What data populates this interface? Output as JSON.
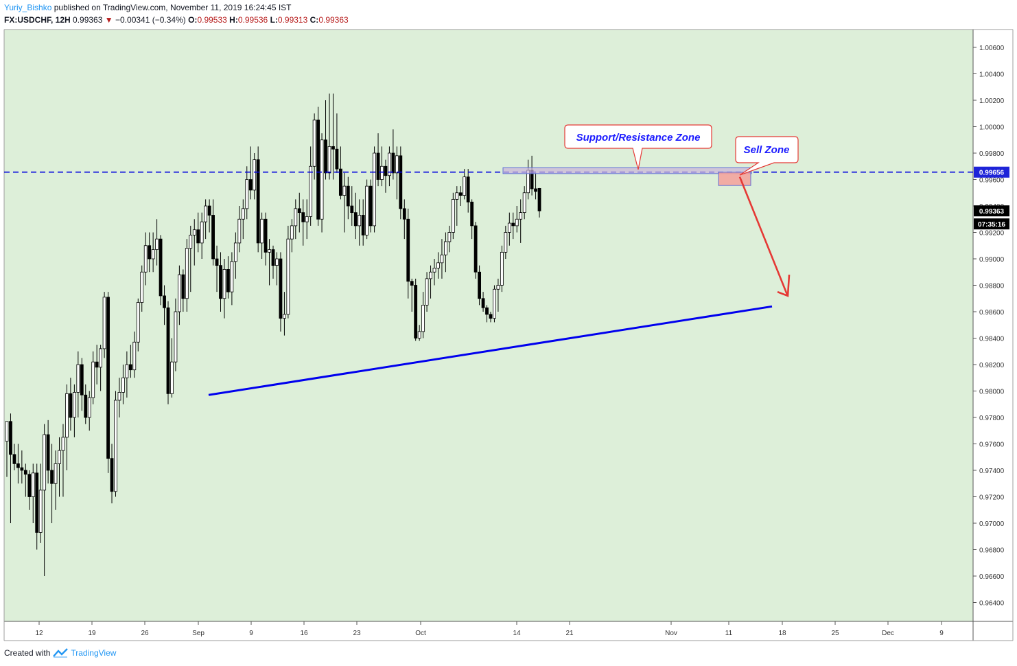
{
  "header": {
    "author": "Yuriy_Bishko",
    "published_text": "published on TradingView.com, November 11, 2019 16:24:45 IST",
    "symbol": "FX:USDCHF, 12H",
    "last": "0.99363",
    "change": "−0.00341 (−0.34%)",
    "o_label": "O:",
    "o": "0.99533",
    "h_label": "H:",
    "h": "0.99536",
    "l_label": "L:",
    "l": "0.99313",
    "c_label": "C:",
    "c": "0.99363"
  },
  "footer": {
    "created_with": "Created with",
    "brand": "TradingView"
  },
  "colors": {
    "background": "#ffffff",
    "plot_bg": "#ddefd9",
    "candle_up_fill": "#ffffff",
    "candle_down_fill": "#000000",
    "trendline": "#0000ee",
    "dashed_line": "#0000dd",
    "arrow": "#e53935",
    "callout_text": "#1a1aff",
    "callout_border": "#e53935",
    "sell_zone_fill": "#f4a09a",
    "sr_zone_fill": "#c9b3d8"
  },
  "chart_data": {
    "type": "candlestick",
    "symbol": "FX:USDCHF",
    "timeframe": "12H",
    "y_axis": {
      "min": 0.962,
      "max": 1.007,
      "ticks": [
        "1.00600",
        "1.00400",
        "1.00200",
        "1.00000",
        "0.99800",
        "0.99600",
        "0.99400",
        "0.99200",
        "0.99000",
        "0.98800",
        "0.98600",
        "0.98400",
        "0.98200",
        "0.98000",
        "0.97800",
        "0.97600",
        "0.97400",
        "0.97200",
        "0.97000",
        "0.96800",
        "0.96600",
        "0.96400"
      ],
      "price_tags": [
        {
          "value": 0.99656,
          "label": "0.99656",
          "style": "blue"
        },
        {
          "value": 0.99363,
          "label": "0.99363",
          "style": "black"
        },
        {
          "value": 0.9922,
          "label": "07:35:16",
          "style": "black"
        }
      ]
    },
    "x_axis": {
      "ticks": [
        "12",
        "19",
        "26",
        "Sep",
        "9",
        "16",
        "23",
        "Oct",
        "14",
        "21",
        "Nov",
        "11",
        "18",
        "25",
        "Dec",
        "9"
      ]
    },
    "candles": [
      [
        0.9762,
        0.9777,
        0.9735,
        0.9777
      ],
      [
        0.9777,
        0.9783,
        0.97,
        0.9752
      ],
      [
        0.9752,
        0.976,
        0.974,
        0.9745
      ],
      [
        0.9745,
        0.976,
        0.973,
        0.9742
      ],
      [
        0.9742,
        0.9755,
        0.973,
        0.974
      ],
      [
        0.974,
        0.9745,
        0.972,
        0.9737
      ],
      [
        0.9737,
        0.974,
        0.971,
        0.972
      ],
      [
        0.972,
        0.9745,
        0.97,
        0.9738
      ],
      [
        0.9738,
        0.9745,
        0.968,
        0.9693
      ],
      [
        0.9693,
        0.9745,
        0.9685,
        0.9725
      ],
      [
        0.9725,
        0.9775,
        0.966,
        0.9767
      ],
      [
        0.9767,
        0.9778,
        0.973,
        0.974
      ],
      [
        0.974,
        0.976,
        0.97,
        0.973
      ],
      [
        0.973,
        0.9755,
        0.971,
        0.9745
      ],
      [
        0.9745,
        0.9765,
        0.972,
        0.9755
      ],
      [
        0.9755,
        0.9775,
        0.972,
        0.9765
      ],
      [
        0.9765,
        0.9805,
        0.974,
        0.9798
      ],
      [
        0.9798,
        0.981,
        0.977,
        0.978
      ],
      [
        0.978,
        0.9805,
        0.9765,
        0.9799
      ],
      [
        0.9799,
        0.983,
        0.978,
        0.982
      ],
      [
        0.982,
        0.9825,
        0.9785,
        0.9797
      ],
      [
        0.9797,
        0.9805,
        0.9775,
        0.978
      ],
      [
        0.978,
        0.98,
        0.977,
        0.9795
      ],
      [
        0.9795,
        0.983,
        0.979,
        0.9822
      ],
      [
        0.9822,
        0.9835,
        0.9805,
        0.9818
      ],
      [
        0.9818,
        0.9835,
        0.98,
        0.9832
      ],
      [
        0.9832,
        0.9875,
        0.9825,
        0.9871
      ],
      [
        0.9871,
        0.9875,
        0.9738,
        0.9749
      ],
      [
        0.9749,
        0.976,
        0.9715,
        0.9724
      ],
      [
        0.9724,
        0.98,
        0.972,
        0.9793
      ],
      [
        0.9793,
        0.981,
        0.978,
        0.9799
      ],
      [
        0.9799,
        0.982,
        0.979,
        0.981
      ],
      [
        0.981,
        0.983,
        0.9795,
        0.982
      ],
      [
        0.982,
        0.9835,
        0.981,
        0.9816
      ],
      [
        0.9816,
        0.9845,
        0.981,
        0.9837
      ],
      [
        0.9837,
        0.987,
        0.983,
        0.9867
      ],
      [
        0.9867,
        0.9895,
        0.986,
        0.989
      ],
      [
        0.989,
        0.992,
        0.988,
        0.991
      ],
      [
        0.991,
        0.992,
        0.989,
        0.99
      ],
      [
        0.99,
        0.992,
        0.989,
        0.9907
      ],
      [
        0.9907,
        0.993,
        0.9895,
        0.9915
      ],
      [
        0.9915,
        0.9918,
        0.9865,
        0.9872
      ],
      [
        0.9872,
        0.988,
        0.985,
        0.9863
      ],
      [
        0.9863,
        0.9868,
        0.979,
        0.9798
      ],
      [
        0.9798,
        0.984,
        0.9795,
        0.9822
      ],
      [
        0.9822,
        0.987,
        0.9815,
        0.986
      ],
      [
        0.986,
        0.9895,
        0.985,
        0.9888
      ],
      [
        0.9888,
        0.9892,
        0.986,
        0.987
      ],
      [
        0.987,
        0.9915,
        0.986,
        0.9908
      ],
      [
        0.9908,
        0.9925,
        0.9875,
        0.9918
      ],
      [
        0.9918,
        0.993,
        0.9895,
        0.9922
      ],
      [
        0.9922,
        0.9935,
        0.9905,
        0.9912
      ],
      [
        0.9912,
        0.9935,
        0.99,
        0.9928
      ],
      [
        0.9928,
        0.9945,
        0.9915,
        0.994
      ],
      [
        0.994,
        0.9945,
        0.992,
        0.9933
      ],
      [
        0.9933,
        0.9945,
        0.9895,
        0.99
      ],
      [
        0.99,
        0.991,
        0.9875,
        0.9895
      ],
      [
        0.9895,
        0.9905,
        0.986,
        0.987
      ],
      [
        0.987,
        0.99,
        0.9855,
        0.9892
      ],
      [
        0.9892,
        0.9902,
        0.987,
        0.9875
      ],
      [
        0.9875,
        0.9905,
        0.9865,
        0.9898
      ],
      [
        0.9898,
        0.992,
        0.9885,
        0.9912
      ],
      [
        0.9912,
        0.994,
        0.9905,
        0.993
      ],
      [
        0.993,
        0.9945,
        0.9915,
        0.9938
      ],
      [
        0.9938,
        0.997,
        0.993,
        0.996
      ],
      [
        0.996,
        0.9985,
        0.9945,
        0.9952
      ],
      [
        0.9952,
        0.998,
        0.9945,
        0.9975
      ],
      [
        0.9975,
        0.9985,
        0.9905,
        0.9912
      ],
      [
        0.9912,
        0.9935,
        0.99,
        0.993
      ],
      [
        0.993,
        0.9935,
        0.9895,
        0.9905
      ],
      [
        0.9905,
        0.9915,
        0.988,
        0.9907
      ],
      [
        0.9907,
        0.991,
        0.9885,
        0.9895
      ],
      [
        0.9895,
        0.9905,
        0.988,
        0.99
      ],
      [
        0.99,
        0.9905,
        0.9845,
        0.9855
      ],
      [
        0.9855,
        0.9875,
        0.9842,
        0.9858
      ],
      [
        0.9858,
        0.9925,
        0.9855,
        0.9915
      ],
      [
        0.9915,
        0.993,
        0.9905,
        0.9925
      ],
      [
        0.9925,
        0.9945,
        0.9915,
        0.9938
      ],
      [
        0.9938,
        0.995,
        0.992,
        0.9935
      ],
      [
        0.9935,
        0.9945,
        0.991,
        0.9928
      ],
      [
        0.9928,
        0.9945,
        0.9915,
        0.9932
      ],
      [
        0.9932,
        0.9985,
        0.9925,
        0.997
      ],
      [
        0.997,
        1.001,
        0.996,
        1.0005
      ],
      [
        1.0005,
        1.0015,
        0.9925,
        0.993
      ],
      [
        0.993,
        0.9995,
        0.992,
        0.999
      ],
      [
        0.999,
        1.002,
        0.996,
        0.9965
      ],
      [
        0.9965,
        1.0025,
        0.996,
        0.9985
      ],
      [
        0.9985,
        1.0025,
        0.996,
        0.9983
      ],
      [
        0.9983,
        1.001,
        0.9965,
        0.9968
      ],
      [
        0.9968,
        0.9985,
        0.9945,
        0.9948
      ],
      [
        0.9948,
        0.9965,
        0.992,
        0.9955
      ],
      [
        0.9955,
        0.9962,
        0.993,
        0.994
      ],
      [
        0.994,
        0.9955,
        0.9925,
        0.9935
      ],
      [
        0.9935,
        0.995,
        0.9915,
        0.9925
      ],
      [
        0.9925,
        0.9945,
        0.991,
        0.9933
      ],
      [
        0.9933,
        0.9945,
        0.991,
        0.9918
      ],
      [
        0.9918,
        0.996,
        0.9915,
        0.9955
      ],
      [
        0.9955,
        0.996,
        0.992,
        0.9925
      ],
      [
        0.9925,
        0.9985,
        0.992,
        0.998
      ],
      [
        0.998,
        0.9995,
        0.9955,
        0.996
      ],
      [
        0.996,
        0.9985,
        0.9955,
        0.997
      ],
      [
        0.997,
        0.9975,
        0.995,
        0.9963
      ],
      [
        0.9963,
        0.9985,
        0.9955,
        0.998
      ],
      [
        0.998,
        0.9998,
        0.996,
        0.9965
      ],
      [
        0.9965,
        0.9985,
        0.9945,
        0.9978
      ],
      [
        0.9978,
        0.9985,
        0.993,
        0.9938
      ],
      [
        0.9938,
        0.9945,
        0.9915,
        0.993
      ],
      [
        0.993,
        0.9938,
        0.987,
        0.9883
      ],
      [
        0.9883,
        0.9885,
        0.986,
        0.988
      ],
      [
        0.988,
        0.9885,
        0.9838,
        0.984
      ],
      [
        0.984,
        0.985,
        0.9838,
        0.9845
      ],
      [
        0.9845,
        0.9875,
        0.984,
        0.9865
      ],
      [
        0.9865,
        0.989,
        0.986,
        0.9885
      ],
      [
        0.9885,
        0.9895,
        0.987,
        0.989
      ],
      [
        0.989,
        0.99,
        0.988,
        0.9893
      ],
      [
        0.9893,
        0.9905,
        0.9885,
        0.9897
      ],
      [
        0.9897,
        0.9915,
        0.9885,
        0.9903
      ],
      [
        0.9903,
        0.992,
        0.989,
        0.9913
      ],
      [
        0.9913,
        0.9925,
        0.9905,
        0.992
      ],
      [
        0.992,
        0.995,
        0.9915,
        0.9945
      ],
      [
        0.9945,
        0.9955,
        0.9925,
        0.995
      ],
      [
        0.995,
        0.9955,
        0.994,
        0.9948
      ],
      [
        0.9948,
        0.9968,
        0.9945,
        0.9962
      ],
      [
        0.9962,
        0.9968,
        0.9935,
        0.9943
      ],
      [
        0.9943,
        0.9945,
        0.9915,
        0.9925
      ],
      [
        0.9925,
        0.9928,
        0.9885,
        0.989
      ],
      [
        0.989,
        0.9895,
        0.9865,
        0.987
      ],
      [
        0.987,
        0.9875,
        0.986,
        0.9863
      ],
      [
        0.9863,
        0.9865,
        0.9852,
        0.9858
      ],
      [
        0.9858,
        0.986,
        0.9852,
        0.9855
      ],
      [
        0.9855,
        0.988,
        0.9852,
        0.9877
      ],
      [
        0.9877,
        0.9885,
        0.986,
        0.988
      ],
      [
        0.988,
        0.991,
        0.9875,
        0.9905
      ],
      [
        0.9905,
        0.9925,
        0.99,
        0.992
      ],
      [
        0.992,
        0.9935,
        0.991,
        0.9927
      ],
      [
        0.9927,
        0.9935,
        0.9915,
        0.9925
      ],
      [
        0.9925,
        0.994,
        0.992,
        0.993
      ],
      [
        0.993,
        0.9945,
        0.9912,
        0.9935
      ],
      [
        0.9935,
        0.9955,
        0.993,
        0.995
      ],
      [
        0.995,
        0.9975,
        0.9945,
        0.9967
      ],
      [
        0.9967,
        0.9978,
        0.9948,
        0.9953
      ],
      [
        0.9953,
        0.9965,
        0.9945,
        0.9951
      ],
      [
        0.99533,
        0.99536,
        0.99313,
        0.99363
      ]
    ],
    "annotations": [
      {
        "type": "horizontal_dashed_line",
        "value": 0.99656
      },
      {
        "type": "trendline",
        "from": {
          "x": "Sep 4",
          "y": 0.9797
        },
        "to": {
          "x": "Nov 16",
          "y": 0.9864
        }
      },
      {
        "type": "zone",
        "label": "Support/Resistance Zone",
        "y_range": [
          0.99645,
          0.9969
        ]
      },
      {
        "type": "zone",
        "label": "Sell Zone",
        "y_range": [
          0.99555,
          0.99655
        ]
      },
      {
        "type": "arrow",
        "direction": "down",
        "from": 0.9965,
        "to": 0.9872
      }
    ],
    "callouts": {
      "sr_zone": "Support/Resistance Zone",
      "sell_zone": "Sell Zone"
    }
  }
}
